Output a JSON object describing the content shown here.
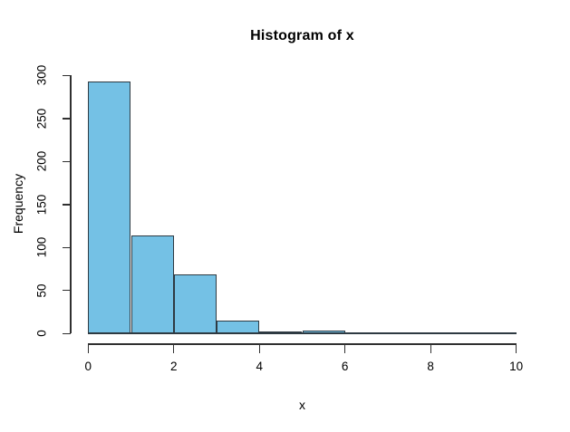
{
  "chart_data": {
    "type": "bar",
    "subtype": "histogram",
    "title": "Histogram of x",
    "xlabel": "x",
    "ylabel": "Frequency",
    "bin_edges": [
      0,
      1,
      2,
      3,
      4,
      5,
      6,
      7,
      8,
      9,
      10
    ],
    "categories": [
      "0-1",
      "1-2",
      "2-3",
      "3-4",
      "4-5",
      "5-6",
      "6-7",
      "7-8",
      "8-9",
      "9-10"
    ],
    "values": [
      293,
      114,
      69,
      15,
      2,
      4,
      1,
      1,
      0,
      1
    ],
    "x_ticks": [
      0,
      2,
      4,
      6,
      8,
      10
    ],
    "y_ticks": [
      0,
      50,
      100,
      150,
      200,
      250,
      300
    ],
    "xlim": [
      0,
      10
    ],
    "ylim": [
      0,
      300
    ],
    "grid": false,
    "legend": false,
    "colors": {
      "bar_fill": "#74C1E5",
      "bar_border": "#2E3A42",
      "axis": "#303030",
      "text": "#000000",
      "background": "#FFFFFF"
    }
  }
}
